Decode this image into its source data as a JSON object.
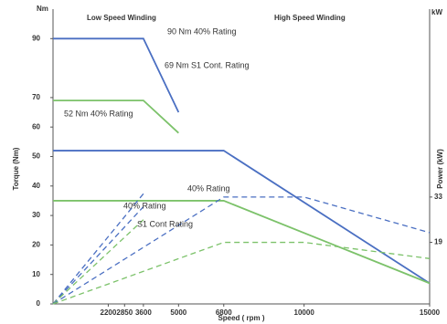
{
  "chart_data": {
    "type": "line",
    "y_unit": "Nm",
    "y2_unit": "kW",
    "ylabel": "Torque (Nm)",
    "y2label": "Power (kW)",
    "xlabel": "Speed ( rpm )",
    "annotations": [
      "Low Speed Winding",
      "High Speed Winding",
      "90 Nm 40% Rating",
      "69 Nm S1 Cont. Rating",
      "52 Nm 40% Rating",
      "40% Rating",
      "40% Rating",
      "S1 Cont Rating"
    ],
    "xlim": [
      0,
      15000
    ],
    "xticks": [
      2200,
      2850,
      3600,
      5000,
      6800,
      10000,
      15000
    ],
    "ylim": [
      0,
      100
    ],
    "yticks": [
      0,
      10,
      20,
      30,
      40,
      50,
      60,
      70,
      90
    ],
    "y2lim": [
      0,
      91
    ],
    "y2ticks": [
      19,
      33
    ],
    "series": [
      {
        "color": "#4a6fc2",
        "x": [
          0,
          3600,
          5000
        ],
        "values": [
          90,
          90,
          65
        ]
      },
      {
        "color": "#7cc26a",
        "x": [
          0,
          2850,
          3600,
          5000
        ],
        "values": [
          69,
          69,
          69,
          58
        ]
      },
      {
        "color": "#4a6fc2",
        "x": [
          0,
          6800,
          15000
        ],
        "values": [
          52,
          52,
          7
        ]
      },
      {
        "color": "#7cc26a",
        "x": [
          0,
          6800,
          15000
        ],
        "values": [
          35,
          35,
          7
        ]
      },
      {
        "color": "#4a6fc2",
        "dash": true,
        "axis": "y2",
        "x": [
          0,
          3600
        ],
        "values": [
          0,
          34
        ]
      },
      {
        "color": "#4a6fc2",
        "dash": true,
        "axis": "y2",
        "x": [
          0,
          3600
        ],
        "values": [
          0,
          30
        ]
      },
      {
        "color": "#7cc26a",
        "dash": true,
        "axis": "y2",
        "x": [
          0,
          3600
        ],
        "values": [
          0,
          26
        ]
      },
      {
        "color": "#4a6fc2",
        "dash": true,
        "axis": "y2",
        "x": [
          0,
          6800,
          10000,
          15000
        ],
        "values": [
          0,
          33,
          33,
          22
        ]
      },
      {
        "color": "#7cc26a",
        "dash": true,
        "axis": "y2",
        "x": [
          0,
          6800,
          10000,
          15000
        ],
        "values": [
          0,
          19,
          19,
          14
        ]
      }
    ]
  }
}
